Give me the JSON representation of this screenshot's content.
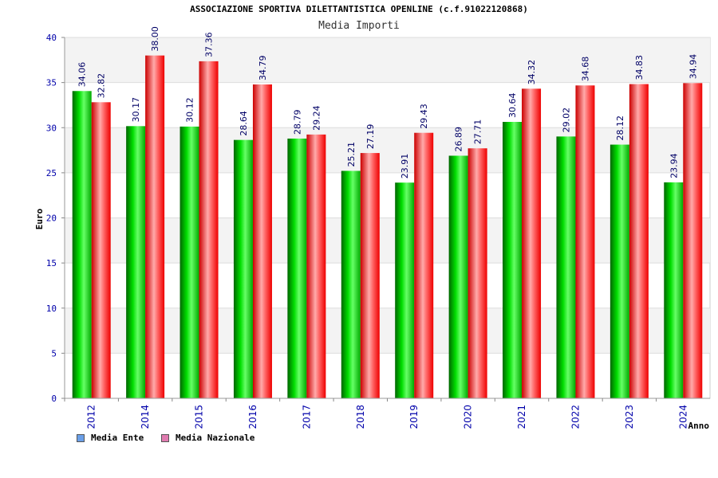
{
  "chart_data": {
    "type": "bar",
    "title": "ASSOCIAZIONE SPORTIVA DILETTANTISTICA OPENLINE (c.f.91022120868)",
    "subtitle": "Media Importi",
    "ylabel": "Euro",
    "xlabel": "Anno",
    "ylim": [
      0,
      40
    ],
    "yticks": [
      0,
      5,
      10,
      15,
      20,
      25,
      30,
      35,
      40
    ],
    "categories": [
      "2012",
      "2014",
      "2015",
      "2016",
      "2017",
      "2018",
      "2019",
      "2020",
      "2021",
      "2022",
      "2023",
      "2024"
    ],
    "series": [
      {
        "name": "Media Ente",
        "color": "#00cc00",
        "legend_color": "#6a9fe8",
        "values": [
          34.06,
          30.17,
          30.12,
          28.64,
          28.79,
          25.21,
          23.91,
          26.89,
          30.64,
          29.02,
          28.12,
          23.94
        ],
        "labels": [
          "34.06",
          "30.17",
          "30.12",
          "28.64",
          "28.79",
          "25.21",
          "23.91",
          "26.89",
          "30.64",
          "29.02",
          "28.12",
          "23.94"
        ]
      },
      {
        "name": "Media Nazionale",
        "color": "#ff0000",
        "legend_color": "#e07bb0",
        "values": [
          32.82,
          38.0,
          37.36,
          34.79,
          29.24,
          27.19,
          29.43,
          27.71,
          34.32,
          34.68,
          34.83,
          34.94
        ],
        "labels": [
          "32.82",
          "38.00",
          "37.36",
          "34.79",
          "29.24",
          "27.19",
          "29.43",
          "27.71",
          "34.32",
          "34.68",
          "34.83",
          "34.94"
        ]
      }
    ],
    "grid": true,
    "legend": "bottom-left"
  }
}
